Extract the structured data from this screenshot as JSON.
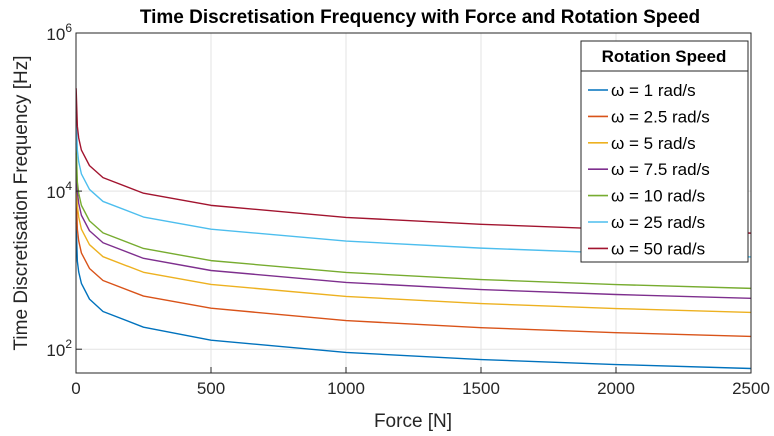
{
  "chart_data": {
    "type": "line",
    "title": "Time Discretisation Frequency with Force and Rotation Speed",
    "xlabel": "Force [N]",
    "ylabel": "Time Discretisation Frequency [Hz]",
    "xlim": [
      0,
      2500
    ],
    "ylim": [
      50,
      1000000
    ],
    "yscale": "log",
    "grid": true,
    "legend": {
      "title": "Rotation Speed",
      "placement": "top-right"
    },
    "x_ticks": [
      {
        "value": 0,
        "label": "0"
      },
      {
        "value": 500,
        "label": "500"
      },
      {
        "value": 1000,
        "label": "1000"
      },
      {
        "value": 1500,
        "label": "1500"
      },
      {
        "value": 2000,
        "label": "2000"
      },
      {
        "value": 2500,
        "label": "2500"
      }
    ],
    "y_ticks": [
      {
        "value": 100,
        "base": "10",
        "exp": "2"
      },
      {
        "value": 10000,
        "base": "10",
        "exp": "4"
      },
      {
        "value": 1000000,
        "base": "10",
        "exp": "6"
      }
    ],
    "x": [
      0.5,
      5,
      10,
      20,
      50,
      100,
      250,
      500,
      1000,
      1500,
      2000,
      2500
    ],
    "series": [
      {
        "name": "ω = 1 rad/s",
        "color": "#0072BD",
        "values": [
          4000,
          1300,
          950,
          680,
          430,
          300,
          190,
          130,
          91,
          74,
          64,
          57
        ]
      },
      {
        "name": "ω = 2.5 rad/s",
        "color": "#D95319",
        "values": [
          10000,
          3300,
          2350,
          1650,
          1050,
          740,
          470,
          330,
          230,
          187,
          162,
          145
        ]
      },
      {
        "name": "ω = 5 rad/s",
        "color": "#EDB120",
        "values": [
          20000,
          6500,
          4700,
          3300,
          2100,
          1480,
          940,
          660,
          465,
          378,
          327,
          292
        ]
      },
      {
        "name": "ω = 7.5 rad/s",
        "color": "#7E2F8E",
        "values": [
          30000,
          9800,
          7000,
          4950,
          3150,
          2220,
          1410,
          990,
          700,
          568,
          492,
          440
        ]
      },
      {
        "name": "ω = 10 rad/s",
        "color": "#77AC30",
        "values": [
          40000,
          13000,
          9400,
          6600,
          4200,
          2960,
          1880,
          1320,
          935,
          760,
          657,
          588
        ]
      },
      {
        "name": "ω = 25 rad/s",
        "color": "#4DBEEE",
        "values": [
          100000,
          33000,
          23500,
          16500,
          10500,
          7400,
          4700,
          3300,
          2330,
          1900,
          1640,
          1470
        ]
      },
      {
        "name": "ω = 50 rad/s",
        "color": "#A2142F",
        "values": [
          200000,
          66000,
          47000,
          33000,
          21000,
          14800,
          9400,
          6600,
          4650,
          3800,
          3290,
          2940
        ]
      }
    ]
  }
}
